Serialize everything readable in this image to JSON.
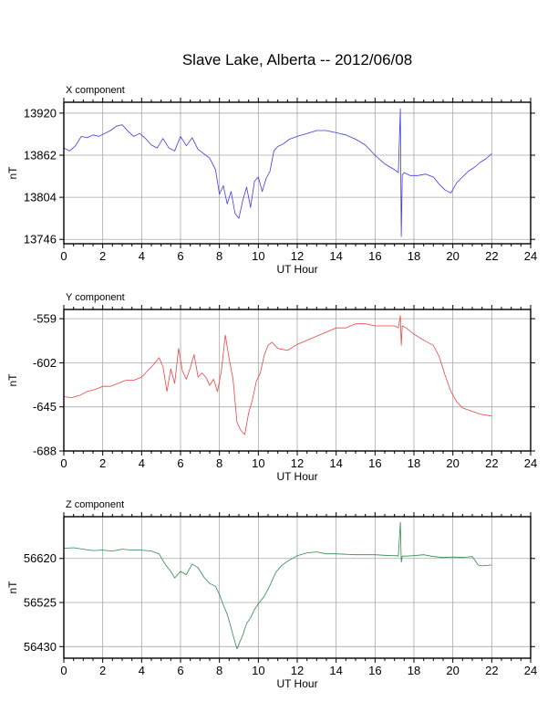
{
  "title": "Slave Lake, Alberta -- 2012/06/08",
  "chart_data": [
    {
      "type": "line",
      "title": "X component",
      "xlabel": "UT Hour",
      "ylabel": "nT",
      "xlim": [
        0,
        24
      ],
      "ylim": [
        13740,
        13935
      ],
      "xticks": [
        0,
        2,
        4,
        6,
        8,
        10,
        12,
        14,
        16,
        18,
        20,
        22,
        24
      ],
      "yticks": [
        13746,
        13804,
        13862,
        13920
      ],
      "grid": true,
      "color": "#3a3af0",
      "series": [
        {
          "x": [
            0,
            0.3,
            0.6,
            0.9,
            1.2,
            1.5,
            1.8,
            2.1,
            2.4,
            2.7,
            3.0,
            3.3,
            3.6,
            3.9,
            4.2,
            4.5,
            4.8,
            5.1,
            5.4,
            5.7,
            6.0,
            6.3,
            6.6,
            6.9,
            7.2,
            7.5,
            7.8,
            8.0,
            8.2,
            8.4,
            8.6,
            8.8,
            9.0,
            9.2,
            9.4,
            9.6,
            9.8,
            10.0,
            10.2,
            10.4,
            10.6,
            10.8,
            11.0,
            11.3,
            11.6,
            12.0,
            12.5,
            13.0,
            13.5,
            14.0,
            14.5,
            15.0,
            15.5,
            16.0,
            16.5,
            17.0,
            17.2,
            17.3,
            17.35,
            17.4,
            17.5,
            17.8,
            18.2,
            18.6,
            19.0,
            19.3,
            19.6,
            19.9,
            20.2,
            20.5,
            20.8,
            21.1,
            21.4,
            21.7,
            22.0
          ],
          "y": [
            13872,
            13868,
            13875,
            13888,
            13886,
            13890,
            13888,
            13892,
            13896,
            13902,
            13904,
            13895,
            13888,
            13892,
            13885,
            13876,
            13872,
            13885,
            13872,
            13868,
            13888,
            13875,
            13886,
            13870,
            13864,
            13858,
            13842,
            13808,
            13820,
            13795,
            13812,
            13782,
            13775,
            13800,
            13818,
            13790,
            13826,
            13832,
            13812,
            13830,
            13840,
            13868,
            13874,
            13878,
            13884,
            13888,
            13892,
            13896,
            13896,
            13893,
            13890,
            13884,
            13876,
            13862,
            13850,
            13842,
            13838,
            13926,
            13750,
            13835,
            13838,
            13834,
            13834,
            13836,
            13832,
            13822,
            13814,
            13810,
            13824,
            13832,
            13840,
            13845,
            13852,
            13857,
            13864
          ]
        }
      ]
    },
    {
      "type": "line",
      "title": "Y component",
      "xlabel": "UT Hour",
      "ylabel": "nT",
      "xlim": [
        0,
        24
      ],
      "ylim": [
        -688,
        -550
      ],
      "xticks": [
        0,
        2,
        4,
        6,
        8,
        10,
        12,
        14,
        16,
        18,
        20,
        22,
        24
      ],
      "yticks": [
        -559,
        -602,
        -645,
        -688
      ],
      "grid": true,
      "color": "#ee4444",
      "series": [
        {
          "x": [
            0,
            0.4,
            0.8,
            1.2,
            1.6,
            2.0,
            2.4,
            2.8,
            3.2,
            3.6,
            4.0,
            4.3,
            4.6,
            4.9,
            5.1,
            5.3,
            5.5,
            5.7,
            5.9,
            6.1,
            6.3,
            6.5,
            6.7,
            6.9,
            7.1,
            7.3,
            7.5,
            7.7,
            7.9,
            8.1,
            8.3,
            8.5,
            8.7,
            8.9,
            9.1,
            9.3,
            9.5,
            9.7,
            9.9,
            10.1,
            10.3,
            10.5,
            10.7,
            11.0,
            11.5,
            12.0,
            12.5,
            13.0,
            13.5,
            14.0,
            14.5,
            15.0,
            15.5,
            16.0,
            16.5,
            17.0,
            17.2,
            17.3,
            17.35,
            17.4,
            17.6,
            18.0,
            18.5,
            19.0,
            19.3,
            19.6,
            19.9,
            20.2,
            20.5,
            20.8,
            21.1,
            21.4,
            21.7,
            22.0
          ],
          "y": [
            -635,
            -636,
            -634,
            -630,
            -628,
            -625,
            -625,
            -622,
            -619,
            -619,
            -616,
            -610,
            -604,
            -597,
            -606,
            -630,
            -608,
            -622,
            -588,
            -610,
            -618,
            -607,
            -594,
            -616,
            -612,
            -616,
            -624,
            -618,
            -630,
            -610,
            -575,
            -598,
            -618,
            -660,
            -668,
            -672,
            -651,
            -638,
            -620,
            -612,
            -595,
            -585,
            -582,
            -588,
            -590,
            -584,
            -580,
            -576,
            -572,
            -568,
            -568,
            -564,
            -564,
            -566,
            -566,
            -566,
            -568,
            -556,
            -585,
            -566,
            -568,
            -574,
            -580,
            -585,
            -596,
            -614,
            -630,
            -640,
            -646,
            -648,
            -650,
            -652,
            -653,
            -654
          ]
        }
      ]
    },
    {
      "type": "line",
      "title": "Z component",
      "xlabel": "UT Hour",
      "ylabel": "nT",
      "xlim": [
        0,
        24
      ],
      "ylim": [
        56405,
        56710
      ],
      "xticks": [
        0,
        2,
        4,
        6,
        8,
        10,
        12,
        14,
        16,
        18,
        20,
        22,
        24
      ],
      "yticks": [
        56430,
        56525,
        56620
      ],
      "grid": true,
      "color": "#2e8a4a",
      "series": [
        {
          "x": [
            0,
            0.5,
            1.0,
            1.5,
            2.0,
            2.5,
            3.0,
            3.5,
            4.0,
            4.5,
            4.9,
            5.2,
            5.5,
            5.7,
            6.0,
            6.3,
            6.6,
            6.9,
            7.2,
            7.5,
            7.8,
            8.0,
            8.2,
            8.4,
            8.6,
            8.8,
            8.9,
            9.0,
            9.2,
            9.4,
            9.6,
            9.8,
            10.0,
            10.3,
            10.6,
            10.9,
            11.2,
            11.5,
            12.0,
            12.5,
            13.0,
            13.5,
            14.0,
            15.0,
            16.0,
            16.8,
            17.1,
            17.2,
            17.3,
            17.35,
            17.4,
            17.6,
            18.0,
            18.5,
            19.0,
            19.5,
            20.0,
            20.5,
            21.0,
            21.3,
            21.5,
            22.0
          ],
          "y": [
            56642,
            56643,
            56640,
            56637,
            56638,
            56636,
            56640,
            56638,
            56638,
            56636,
            56630,
            56608,
            56592,
            56578,
            56592,
            56585,
            56608,
            56600,
            56580,
            56566,
            56560,
            56542,
            56520,
            56500,
            56470,
            56440,
            56425,
            56435,
            56455,
            56480,
            56492,
            56510,
            56522,
            56538,
            56562,
            56590,
            56605,
            56614,
            56626,
            56632,
            56634,
            56630,
            56630,
            56628,
            56628,
            56626,
            56626,
            56625,
            56698,
            56612,
            56625,
            56625,
            56626,
            56628,
            56624,
            56622,
            56623,
            56622,
            56624,
            56606,
            56604,
            56606
          ]
        }
      ]
    }
  ]
}
